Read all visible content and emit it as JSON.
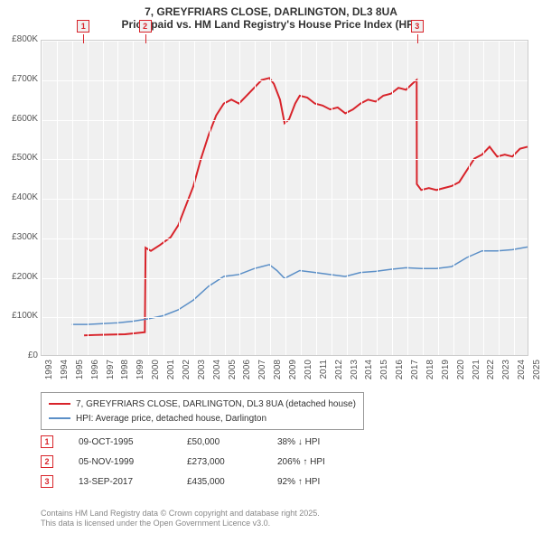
{
  "title": {
    "line1": "7, GREYFRIARS CLOSE, DARLINGTON, DL3 8UA",
    "line2": "Price paid vs. HM Land Registry's House Price Index (HPI)"
  },
  "chart": {
    "type": "line",
    "background_color": "#f0f0f0",
    "grid_color": "#ffffff",
    "plot_border_color": "#cccccc",
    "x": {
      "min": 1993,
      "max": 2025,
      "tick_step": 1
    },
    "y": {
      "min": 0,
      "max": 800000,
      "tick_step": 100000,
      "tick_labels": [
        "£0",
        "£100K",
        "£200K",
        "£300K",
        "£400K",
        "£500K",
        "£600K",
        "£700K",
        "£800K"
      ]
    },
    "series": [
      {
        "name": "7, GREYFRIARS CLOSE, DARLINGTON, DL3 8UA (detached house)",
        "color": "#d8232a",
        "line_width": 2,
        "points": [
          [
            1995.8,
            50000
          ],
          [
            1996.5,
            51000
          ],
          [
            1997.5,
            52000
          ],
          [
            1998.5,
            53000
          ],
          [
            1999.0,
            55000
          ],
          [
            1999.8,
            58000
          ],
          [
            1999.85,
            273000
          ],
          [
            2000.2,
            265000
          ],
          [
            2000.8,
            280000
          ],
          [
            2001.5,
            300000
          ],
          [
            2002.0,
            330000
          ],
          [
            2002.5,
            380000
          ],
          [
            2003.0,
            430000
          ],
          [
            2003.5,
            500000
          ],
          [
            2004.0,
            560000
          ],
          [
            2004.5,
            610000
          ],
          [
            2005.0,
            640000
          ],
          [
            2005.5,
            650000
          ],
          [
            2006.0,
            640000
          ],
          [
            2006.5,
            660000
          ],
          [
            2007.0,
            680000
          ],
          [
            2007.5,
            700000
          ],
          [
            2008.0,
            705000
          ],
          [
            2008.3,
            690000
          ],
          [
            2008.7,
            650000
          ],
          [
            2009.0,
            590000
          ],
          [
            2009.3,
            600000
          ],
          [
            2009.7,
            640000
          ],
          [
            2010.0,
            660000
          ],
          [
            2010.5,
            655000
          ],
          [
            2011.0,
            640000
          ],
          [
            2011.5,
            635000
          ],
          [
            2012.0,
            625000
          ],
          [
            2012.5,
            630000
          ],
          [
            2013.0,
            615000
          ],
          [
            2013.5,
            625000
          ],
          [
            2014.0,
            640000
          ],
          [
            2014.5,
            650000
          ],
          [
            2015.0,
            645000
          ],
          [
            2015.5,
            660000
          ],
          [
            2016.0,
            665000
          ],
          [
            2016.5,
            680000
          ],
          [
            2017.0,
            675000
          ],
          [
            2017.4,
            690000
          ],
          [
            2017.7,
            700000
          ],
          [
            2017.71,
            435000
          ],
          [
            2018.0,
            420000
          ],
          [
            2018.5,
            425000
          ],
          [
            2019.0,
            420000
          ],
          [
            2019.5,
            425000
          ],
          [
            2020.0,
            430000
          ],
          [
            2020.5,
            440000
          ],
          [
            2021.0,
            470000
          ],
          [
            2021.5,
            500000
          ],
          [
            2022.0,
            510000
          ],
          [
            2022.5,
            530000
          ],
          [
            2023.0,
            505000
          ],
          [
            2023.5,
            510000
          ],
          [
            2024.0,
            505000
          ],
          [
            2024.5,
            525000
          ],
          [
            2025.0,
            530000
          ]
        ]
      },
      {
        "name": "HPI: Average price, detached house, Darlington",
        "color": "#5b8fc7",
        "line_width": 1.5,
        "points": [
          [
            1995.0,
            78000
          ],
          [
            1996.0,
            78000
          ],
          [
            1997.0,
            80000
          ],
          [
            1998.0,
            82000
          ],
          [
            1999.0,
            86000
          ],
          [
            2000.0,
            92000
          ],
          [
            2001.0,
            100000
          ],
          [
            2002.0,
            115000
          ],
          [
            2003.0,
            140000
          ],
          [
            2004.0,
            175000
          ],
          [
            2005.0,
            200000
          ],
          [
            2006.0,
            205000
          ],
          [
            2007.0,
            220000
          ],
          [
            2007.5,
            225000
          ],
          [
            2008.0,
            230000
          ],
          [
            2008.5,
            215000
          ],
          [
            2009.0,
            195000
          ],
          [
            2009.5,
            205000
          ],
          [
            2010.0,
            215000
          ],
          [
            2011.0,
            210000
          ],
          [
            2012.0,
            205000
          ],
          [
            2013.0,
            200000
          ],
          [
            2014.0,
            210000
          ],
          [
            2015.0,
            213000
          ],
          [
            2016.0,
            218000
          ],
          [
            2017.0,
            222000
          ],
          [
            2018.0,
            220000
          ],
          [
            2019.0,
            220000
          ],
          [
            2020.0,
            225000
          ],
          [
            2021.0,
            248000
          ],
          [
            2022.0,
            265000
          ],
          [
            2023.0,
            265000
          ],
          [
            2024.0,
            268000
          ],
          [
            2025.0,
            275000
          ]
        ]
      }
    ],
    "markers": [
      {
        "label": "1",
        "x": 1995.8,
        "color": "#d8232a"
      },
      {
        "label": "2",
        "x": 1999.85,
        "color": "#d8232a"
      },
      {
        "label": "3",
        "x": 2017.7,
        "color": "#d8232a"
      }
    ]
  },
  "legend": {
    "border_color": "#999999",
    "items": [
      {
        "color": "#d8232a",
        "label": "7, GREYFRIARS CLOSE, DARLINGTON, DL3 8UA (detached house)"
      },
      {
        "color": "#5b8fc7",
        "label": "HPI: Average price, detached house, Darlington"
      }
    ]
  },
  "sales": [
    {
      "marker": "1",
      "color": "#d8232a",
      "date": "09-OCT-1995",
      "price": "£50,000",
      "pct": "38% ↓ HPI"
    },
    {
      "marker": "2",
      "color": "#d8232a",
      "date": "05-NOV-1999",
      "price": "£273,000",
      "pct": "206% ↑ HPI"
    },
    {
      "marker": "3",
      "color": "#d8232a",
      "date": "13-SEP-2017",
      "price": "£435,000",
      "pct": "92% ↑ HPI"
    }
  ],
  "attribution": {
    "line1": "Contains HM Land Registry data © Crown copyright and database right 2025.",
    "line2": "This data is licensed under the Open Government Licence v3.0."
  }
}
